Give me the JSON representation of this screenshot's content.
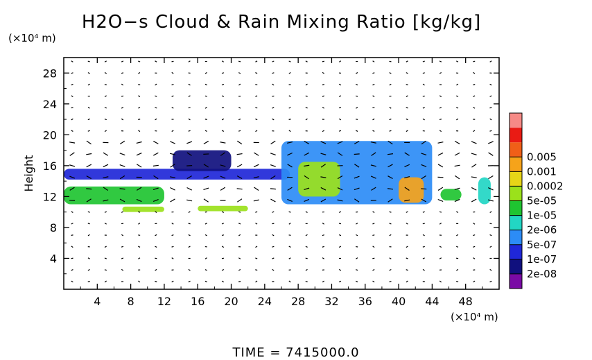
{
  "chart_data": {
    "type": "heatmap",
    "title": "H2O−s Cloud & Rain Mixing Ratio [kg/kg]",
    "ylabel": "Height",
    "y_unit": "(×10⁴ m)",
    "x_unit": "(×10⁴ m)",
    "xlim": [
      0,
      52
    ],
    "ylim": [
      0,
      30
    ],
    "x_ticks": [
      "4",
      "8",
      "12",
      "16",
      "20",
      "24",
      "28",
      "32",
      "36",
      "40",
      "44",
      "48"
    ],
    "y_ticks": [
      "4",
      "8",
      "12",
      "16",
      "20",
      "24",
      "28"
    ],
    "colorbar": {
      "labels": [
        "2e-08",
        "1e-07",
        "5e-07",
        "2e-06",
        "1e-05",
        "5e-05",
        "0.0002",
        "0.001",
        "0.005"
      ],
      "colors": [
        "#7a0aa5",
        "#10107e",
        "#1f27d8",
        "#2c8cf6",
        "#22d6c4",
        "#1fc431",
        "#9be11b",
        "#e7d517",
        "#f6a31a",
        "#f05f18",
        "#e91b14",
        "#f68a86"
      ]
    },
    "cloud_regions": [
      {
        "x0": 0,
        "x1": 27,
        "y_bottom": 14.2,
        "y_top": 15.6,
        "level": "2e-07"
      },
      {
        "x0": 0,
        "x1": 12,
        "y_bottom": 11.0,
        "y_top": 13.3,
        "level": "1e-05"
      },
      {
        "x0": 7,
        "x1": 12,
        "y_bottom": 10.0,
        "y_top": 10.7,
        "level": "5e-05"
      },
      {
        "x0": 16,
        "x1": 22,
        "y_bottom": 10.1,
        "y_top": 10.8,
        "level": "5e-05"
      },
      {
        "x0": 13,
        "x1": 20,
        "y_bottom": 15.3,
        "y_top": 18.0,
        "level": "2e-08"
      },
      {
        "x0": 26,
        "x1": 44,
        "y_bottom": 11.0,
        "y_top": 19.2,
        "level": "1e-06"
      },
      {
        "x0": 28,
        "x1": 33,
        "y_bottom": 12.0,
        "y_top": 16.5,
        "level": "5e-05"
      },
      {
        "x0": 40,
        "x1": 43,
        "y_bottom": 11.2,
        "y_top": 14.5,
        "level": "0.001"
      },
      {
        "x0": 45,
        "x1": 47.5,
        "y_bottom": 11.5,
        "y_top": 13.0,
        "level": "1e-05"
      },
      {
        "x0": 49.5,
        "x1": 51,
        "y_bottom": 11.0,
        "y_top": 14.5,
        "level": "5e-06"
      }
    ],
    "footer": "TIME  =  7415000.0"
  }
}
